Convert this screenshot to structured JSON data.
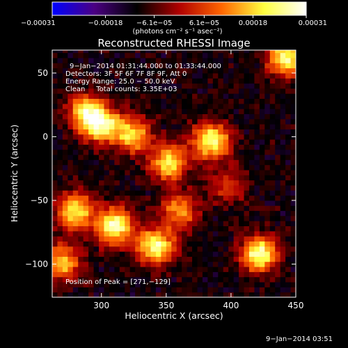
{
  "chart_data": {
    "type": "heatmap",
    "title": "Reconstructed RHESSI Image",
    "xlabel": "Heliocentric X (arcsec)",
    "ylabel": "Heliocentric Y (arcsec)",
    "xlim": [
      262,
      450
    ],
    "ylim": [
      -126,
      68
    ],
    "x_ticks": [
      300,
      350,
      400,
      450
    ],
    "x_tick_labels": [
      "300",
      "350",
      "400",
      "450"
    ],
    "y_ticks": [
      50,
      0,
      -50,
      -100
    ],
    "y_tick_labels": [
      "50",
      "0",
      "−50",
      "−100"
    ],
    "colorbar": {
      "range": [
        -0.00031,
        0.00031
      ],
      "ticks": [
        -0.00031,
        -0.00018,
        -6.1e-05,
        6.1e-05,
        0.00018,
        0.00031
      ],
      "tick_labels": [
        "−0.00031",
        "−0.00018",
        "−6.1e−05",
        "6.1e−05",
        "0.00018",
        "0.00031"
      ],
      "units": "(photons cm⁻² s⁻¹ asec⁻²)",
      "colors": [
        "#0000ff",
        "#4b0082",
        "#000000",
        "#b00000",
        "#ff6600",
        "#ffff40",
        "#ffffff"
      ]
    },
    "annotations": [
      "9−Jan−2014 01:31:44.000 to 01:33:44.000",
      "Detectors: 3F 5F 6F 7F 8F 9F, Att 0",
      "Energy Range: 25.0 − 50.0 keV",
      "Clean     Total counts: 3.35E+03",
      "Position of Peak = [271,−129]"
    ],
    "sources": [
      {
        "x": 308,
        "y": -72,
        "level": 0.95
      },
      {
        "x": 278,
        "y": -60,
        "level": 0.8
      },
      {
        "x": 298,
        "y": 8,
        "level": 0.9
      },
      {
        "x": 322,
        "y": 0,
        "level": 0.75
      },
      {
        "x": 285,
        "y": 18,
        "level": 0.7
      },
      {
        "x": 350,
        "y": -22,
        "level": 0.8
      },
      {
        "x": 340,
        "y": -88,
        "level": 0.92
      },
      {
        "x": 358,
        "y": -60,
        "level": 0.6
      },
      {
        "x": 383,
        "y": -5,
        "level": 0.9
      },
      {
        "x": 420,
        "y": -94,
        "level": 0.95
      },
      {
        "x": 440,
        "y": 60,
        "level": 0.9
      },
      {
        "x": 268,
        "y": -100,
        "level": 0.7
      },
      {
        "x": 395,
        "y": -40,
        "level": 0.4
      }
    ]
  },
  "footer": {
    "timestamp": "9−Jan−2014 03:51"
  }
}
